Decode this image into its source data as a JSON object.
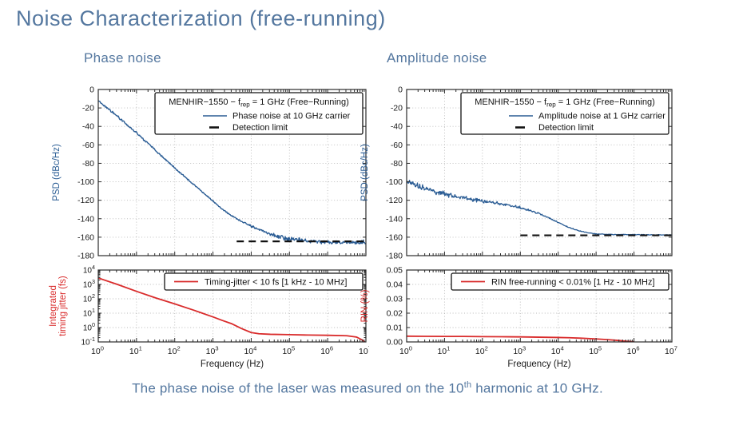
{
  "slide": {
    "title": "Noise Characterization (free-running)",
    "left_section_label": "Phase noise",
    "right_section_label": "Amplitude noise",
    "caption": {
      "before": "The phase noise of the laser was measured on the 10",
      "sup": "th",
      "after": " harmonic at 10 GHz."
    }
  },
  "colors": {
    "accent_text": "#54779f",
    "blue_curve": "#2a5c94",
    "red_curve": "#d92b2b",
    "detection_limit": "#111111",
    "grid": "#b8b8b8",
    "axis": "#2b2b2b"
  },
  "chart_data": [
    {
      "id": "phase-noise-psd",
      "type": "line",
      "xscale": "log",
      "x_exponent_range": [
        0,
        7
      ],
      "xlabel": "",
      "show_x_tick_labels": false,
      "yscale": "linear",
      "ylim": [
        -180,
        0
      ],
      "yticks": [
        0,
        -20,
        -40,
        -60,
        -80,
        -100,
        -120,
        -140,
        -160,
        -180
      ],
      "ytick_format": "plain",
      "ylabel_lines": [
        "PSD (dBc/Hz)"
      ],
      "ylabel_color": "#2a5c94",
      "legend": {
        "title_parts": {
          "pre": "MENHIR−1550 − f",
          "sub": "rep",
          "post": " = 1 GHz (Free−Running)"
        },
        "items": [
          {
            "label": "Phase noise at 10 GHz carrier",
            "color": "#2a5c94",
            "dash": false
          },
          {
            "label": "Detection limit",
            "color": "#111111",
            "dash": true
          }
        ]
      },
      "series": [
        {
          "name": "Phase noise at 10 GHz carrier",
          "color": "#2a5c94",
          "width": 1.4,
          "dash": null,
          "points": [
            [
              0,
              -12
            ],
            [
              0.25,
              -20.5
            ],
            [
              0.5,
              -29
            ],
            [
              0.75,
              -38
            ],
            [
              1,
              -47
            ],
            [
              1.25,
              -56.5
            ],
            [
              1.5,
              -66
            ],
            [
              1.75,
              -75.5
            ],
            [
              2,
              -85
            ],
            [
              2.25,
              -94
            ],
            [
              2.5,
              -103
            ],
            [
              2.75,
              -112
            ],
            [
              3,
              -121
            ],
            [
              3.25,
              -130
            ],
            [
              3.5,
              -137
            ],
            [
              3.75,
              -143
            ],
            [
              4,
              -148
            ],
            [
              4.25,
              -152.5
            ],
            [
              4.5,
              -157
            ],
            [
              4.75,
              -160
            ],
            [
              5,
              -162
            ],
            [
              5.5,
              -164
            ],
            [
              6,
              -165.5
            ],
            [
              6.5,
              -166
            ],
            [
              7,
              -165.5
            ]
          ],
          "noise": [
            [
              0,
              1.3
            ],
            [
              1,
              1.3
            ],
            [
              2,
              1.0
            ],
            [
              3,
              0.7
            ],
            [
              3.8,
              1.0
            ],
            [
              4.3,
              1.8
            ],
            [
              4.8,
              2.6
            ],
            [
              5.5,
              2.2
            ],
            [
              6.2,
              2.4
            ],
            [
              7,
              2.9
            ]
          ]
        },
        {
          "name": "Detection limit",
          "color": "#111111",
          "width": 2.2,
          "dash": [
            9,
            6
          ],
          "points": [
            [
              3.62,
              -164.5
            ],
            [
              7,
              -164.5
            ]
          ],
          "noise": null
        }
      ]
    },
    {
      "id": "amplitude-noise-psd",
      "type": "line",
      "xscale": "log",
      "x_exponent_range": [
        0,
        7
      ],
      "xlabel": "",
      "show_x_tick_labels": false,
      "yscale": "linear",
      "ylim": [
        -180,
        0
      ],
      "yticks": [
        0,
        -20,
        -40,
        -60,
        -80,
        -100,
        -120,
        -140,
        -160,
        -180
      ],
      "ytick_format": "plain",
      "ylabel_lines": [
        "PSD (dBc/Hz)"
      ],
      "ylabel_color": "#2a5c94",
      "legend": {
        "title_parts": {
          "pre": "MENHIR−1550 − f",
          "sub": "rep",
          "post": " = 1 GHz (Free−Running)"
        },
        "items": [
          {
            "label": "Amplitude noise at 1 GHz carrier",
            "color": "#2a5c94",
            "dash": false
          },
          {
            "label": "Detection limit",
            "color": "#111111",
            "dash": true
          }
        ]
      },
      "series": [
        {
          "name": "Amplitude noise at 1 GHz carrier",
          "color": "#2a5c94",
          "width": 1.3,
          "dash": null,
          "points": [
            [
              0,
              -99
            ],
            [
              0.2,
              -103
            ],
            [
              0.4,
              -106
            ],
            [
              0.6,
              -108.5
            ],
            [
              0.8,
              -111
            ],
            [
              1,
              -113
            ],
            [
              1.25,
              -115.5
            ],
            [
              1.5,
              -117.5
            ],
            [
              1.75,
              -119.5
            ],
            [
              2,
              -121
            ],
            [
              2.25,
              -122.5
            ],
            [
              2.5,
              -124
            ],
            [
              2.75,
              -126
            ],
            [
              3,
              -128
            ],
            [
              3.25,
              -131
            ],
            [
              3.5,
              -134.5
            ],
            [
              3.75,
              -139
            ],
            [
              4,
              -144
            ],
            [
              4.25,
              -149
            ],
            [
              4.5,
              -152.5
            ],
            [
              4.75,
              -155
            ],
            [
              5,
              -156.5
            ],
            [
              5.5,
              -157.2
            ],
            [
              6,
              -157.2
            ],
            [
              6.5,
              -157.5
            ],
            [
              7,
              -157.5
            ]
          ],
          "noise": [
            [
              0,
              3.2
            ],
            [
              0.4,
              4.2
            ],
            [
              0.8,
              3.6
            ],
            [
              1.2,
              2.8
            ],
            [
              1.6,
              2.4
            ],
            [
              2,
              2.2
            ],
            [
              2.5,
              1.9
            ],
            [
              3,
              1.6
            ],
            [
              3.5,
              1.0
            ],
            [
              4,
              0.7
            ],
            [
              4.5,
              0.5
            ],
            [
              5,
              0.4
            ],
            [
              7,
              0.35
            ]
          ]
        },
        {
          "name": "Detection limit",
          "color": "#111111",
          "width": 2.2,
          "dash": [
            9,
            6
          ],
          "points": [
            [
              3.0,
              -158
            ],
            [
              7,
              -158
            ]
          ],
          "noise": null
        }
      ]
    },
    {
      "id": "integrated-timing-jitter",
      "type": "line",
      "xscale": "log",
      "x_exponent_range": [
        0,
        7
      ],
      "xlabel": "Frequency (Hz)",
      "show_x_tick_labels": true,
      "yscale": "log",
      "ylim": [
        0.1,
        10000
      ],
      "yticks": [
        10000,
        1000,
        100,
        10,
        1,
        0.1
      ],
      "ytick_format": "pow",
      "ylabel_lines": [
        "Integrated",
        "timing jitter (fs)"
      ],
      "ylabel_color": "#d92b2b",
      "legend": {
        "title_parts": null,
        "items": [
          {
            "label": "Timing-jitter < 10 fs [1 kHz - 10 MHz]",
            "color": "#d92b2b",
            "dash": false
          }
        ]
      },
      "series": [
        {
          "name": "Timing-jitter < 10 fs [1 kHz - 10 MHz]",
          "color": "#d92b2b",
          "width": 1.8,
          "dash": null,
          "points": [
            [
              0,
              2800
            ],
            [
              0.5,
              1000
            ],
            [
              1,
              330
            ],
            [
              1.5,
              115
            ],
            [
              2,
              44
            ],
            [
              2.5,
              16
            ],
            [
              3,
              5.5
            ],
            [
              3.25,
              3.1
            ],
            [
              3.5,
              1.8
            ],
            [
              3.75,
              0.85
            ],
            [
              4,
              0.45
            ],
            [
              4.2,
              0.37
            ],
            [
              4.5,
              0.34
            ],
            [
              5,
              0.32
            ],
            [
              5.5,
              0.3
            ],
            [
              6,
              0.29
            ],
            [
              6.5,
              0.27
            ],
            [
              6.75,
              0.22
            ],
            [
              6.9,
              0.14
            ],
            [
              6.97,
              0.1
            ]
          ],
          "noise": null
        }
      ]
    },
    {
      "id": "rin",
      "type": "line",
      "xscale": "log",
      "x_exponent_range": [
        0,
        7
      ],
      "xlabel": "Frequency (Hz)",
      "show_x_tick_labels": true,
      "yscale": "linear",
      "ylim": [
        0,
        0.05
      ],
      "yticks": [
        0.05,
        0.04,
        0.03,
        0.02,
        0.01,
        0.0
      ],
      "ytick_format": "fixed2",
      "ylabel_lines": [
        "RIN  (%)"
      ],
      "ylabel_color": "#d92b2b",
      "legend": {
        "title_parts": null,
        "items": [
          {
            "label": "RIN free-running < 0.01% [1 Hz - 10 MHz]",
            "color": "#d92b2b",
            "dash": false
          }
        ]
      },
      "series": [
        {
          "name": "RIN free-running < 0.01% [1 Hz - 10 MHz]",
          "color": "#d92b2b",
          "width": 1.8,
          "dash": null,
          "points": [
            [
              0,
              0.004
            ],
            [
              0.5,
              0.0039
            ],
            [
              1,
              0.0038
            ],
            [
              1.5,
              0.0038
            ],
            [
              2,
              0.0037
            ],
            [
              2.5,
              0.0036
            ],
            [
              3,
              0.0035
            ],
            [
              3.5,
              0.0033
            ],
            [
              4,
              0.0031
            ],
            [
              4.3,
              0.0029
            ],
            [
              4.6,
              0.0026
            ],
            [
              5,
              0.0021
            ],
            [
              5.3,
              0.0016
            ],
            [
              5.6,
              0.001
            ],
            [
              5.8,
              0.0005
            ],
            [
              6,
              0.0001
            ]
          ],
          "noise": null
        }
      ]
    }
  ]
}
